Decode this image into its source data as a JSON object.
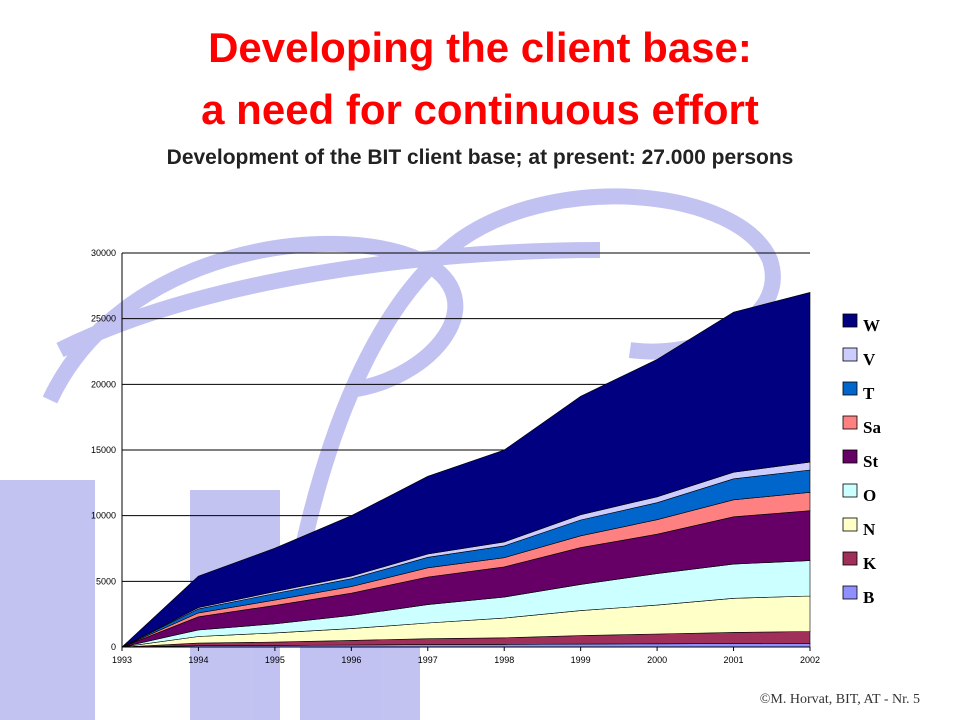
{
  "slide": {
    "title_line1": "Developing the client base:",
    "title_line2": "a need for continuous effort",
    "subtitle": "Development of the BIT client base; at present: 27.000 persons",
    "footer": "©M. Horvat, BIT, AT  - Nr. 5",
    "title_color": "#ff0000",
    "watermark_text": "BIT"
  },
  "chart_data": {
    "type": "area",
    "stacked": true,
    "x": [
      "1993",
      "1994",
      "1995",
      "1996",
      "1997",
      "1998",
      "1999",
      "2000",
      "2001",
      "2002"
    ],
    "xlabel": "",
    "ylabel": "",
    "ylim": [
      0,
      30000
    ],
    "yticks": [
      0,
      5000,
      10000,
      15000,
      20000,
      25000,
      30000
    ],
    "grid": true,
    "legend_position": "right",
    "series": [
      {
        "name": "B",
        "color": "#8f8fff",
        "values": [
          0,
          100,
          120,
          150,
          180,
          200,
          220,
          240,
          260,
          280
        ]
      },
      {
        "name": "K",
        "color": "#a0305a",
        "values": [
          0,
          200,
          250,
          350,
          450,
          500,
          650,
          750,
          850,
          900
        ]
      },
      {
        "name": "N",
        "color": "#ffffc8",
        "values": [
          0,
          500,
          700,
          900,
          1200,
          1500,
          1900,
          2200,
          2600,
          2700
        ]
      },
      {
        "name": "O",
        "color": "#ccffff",
        "values": [
          0,
          500,
          700,
          1000,
          1400,
          1600,
          2000,
          2400,
          2600,
          2700
        ]
      },
      {
        "name": "St",
        "color": "#660066",
        "values": [
          0,
          1000,
          1400,
          1700,
          2100,
          2300,
          2800,
          3000,
          3600,
          3800
        ]
      },
      {
        "name": "Sa",
        "color": "#ff8080",
        "values": [
          0,
          300,
          400,
          500,
          700,
          700,
          900,
          1100,
          1300,
          1400
        ]
      },
      {
        "name": "T",
        "color": "#0066cc",
        "values": [
          0,
          300,
          500,
          600,
          800,
          900,
          1200,
          1300,
          1600,
          1700
        ]
      },
      {
        "name": "V",
        "color": "#ccccff",
        "values": [
          0,
          100,
          150,
          200,
          250,
          300,
          400,
          450,
          500,
          600
        ]
      },
      {
        "name": "W",
        "color": "#000080",
        "values": [
          0,
          2400,
          3300,
          4600,
          5920,
          7000,
          9030,
          10460,
          12190,
          12920
        ]
      }
    ],
    "total_2002": 27000
  }
}
